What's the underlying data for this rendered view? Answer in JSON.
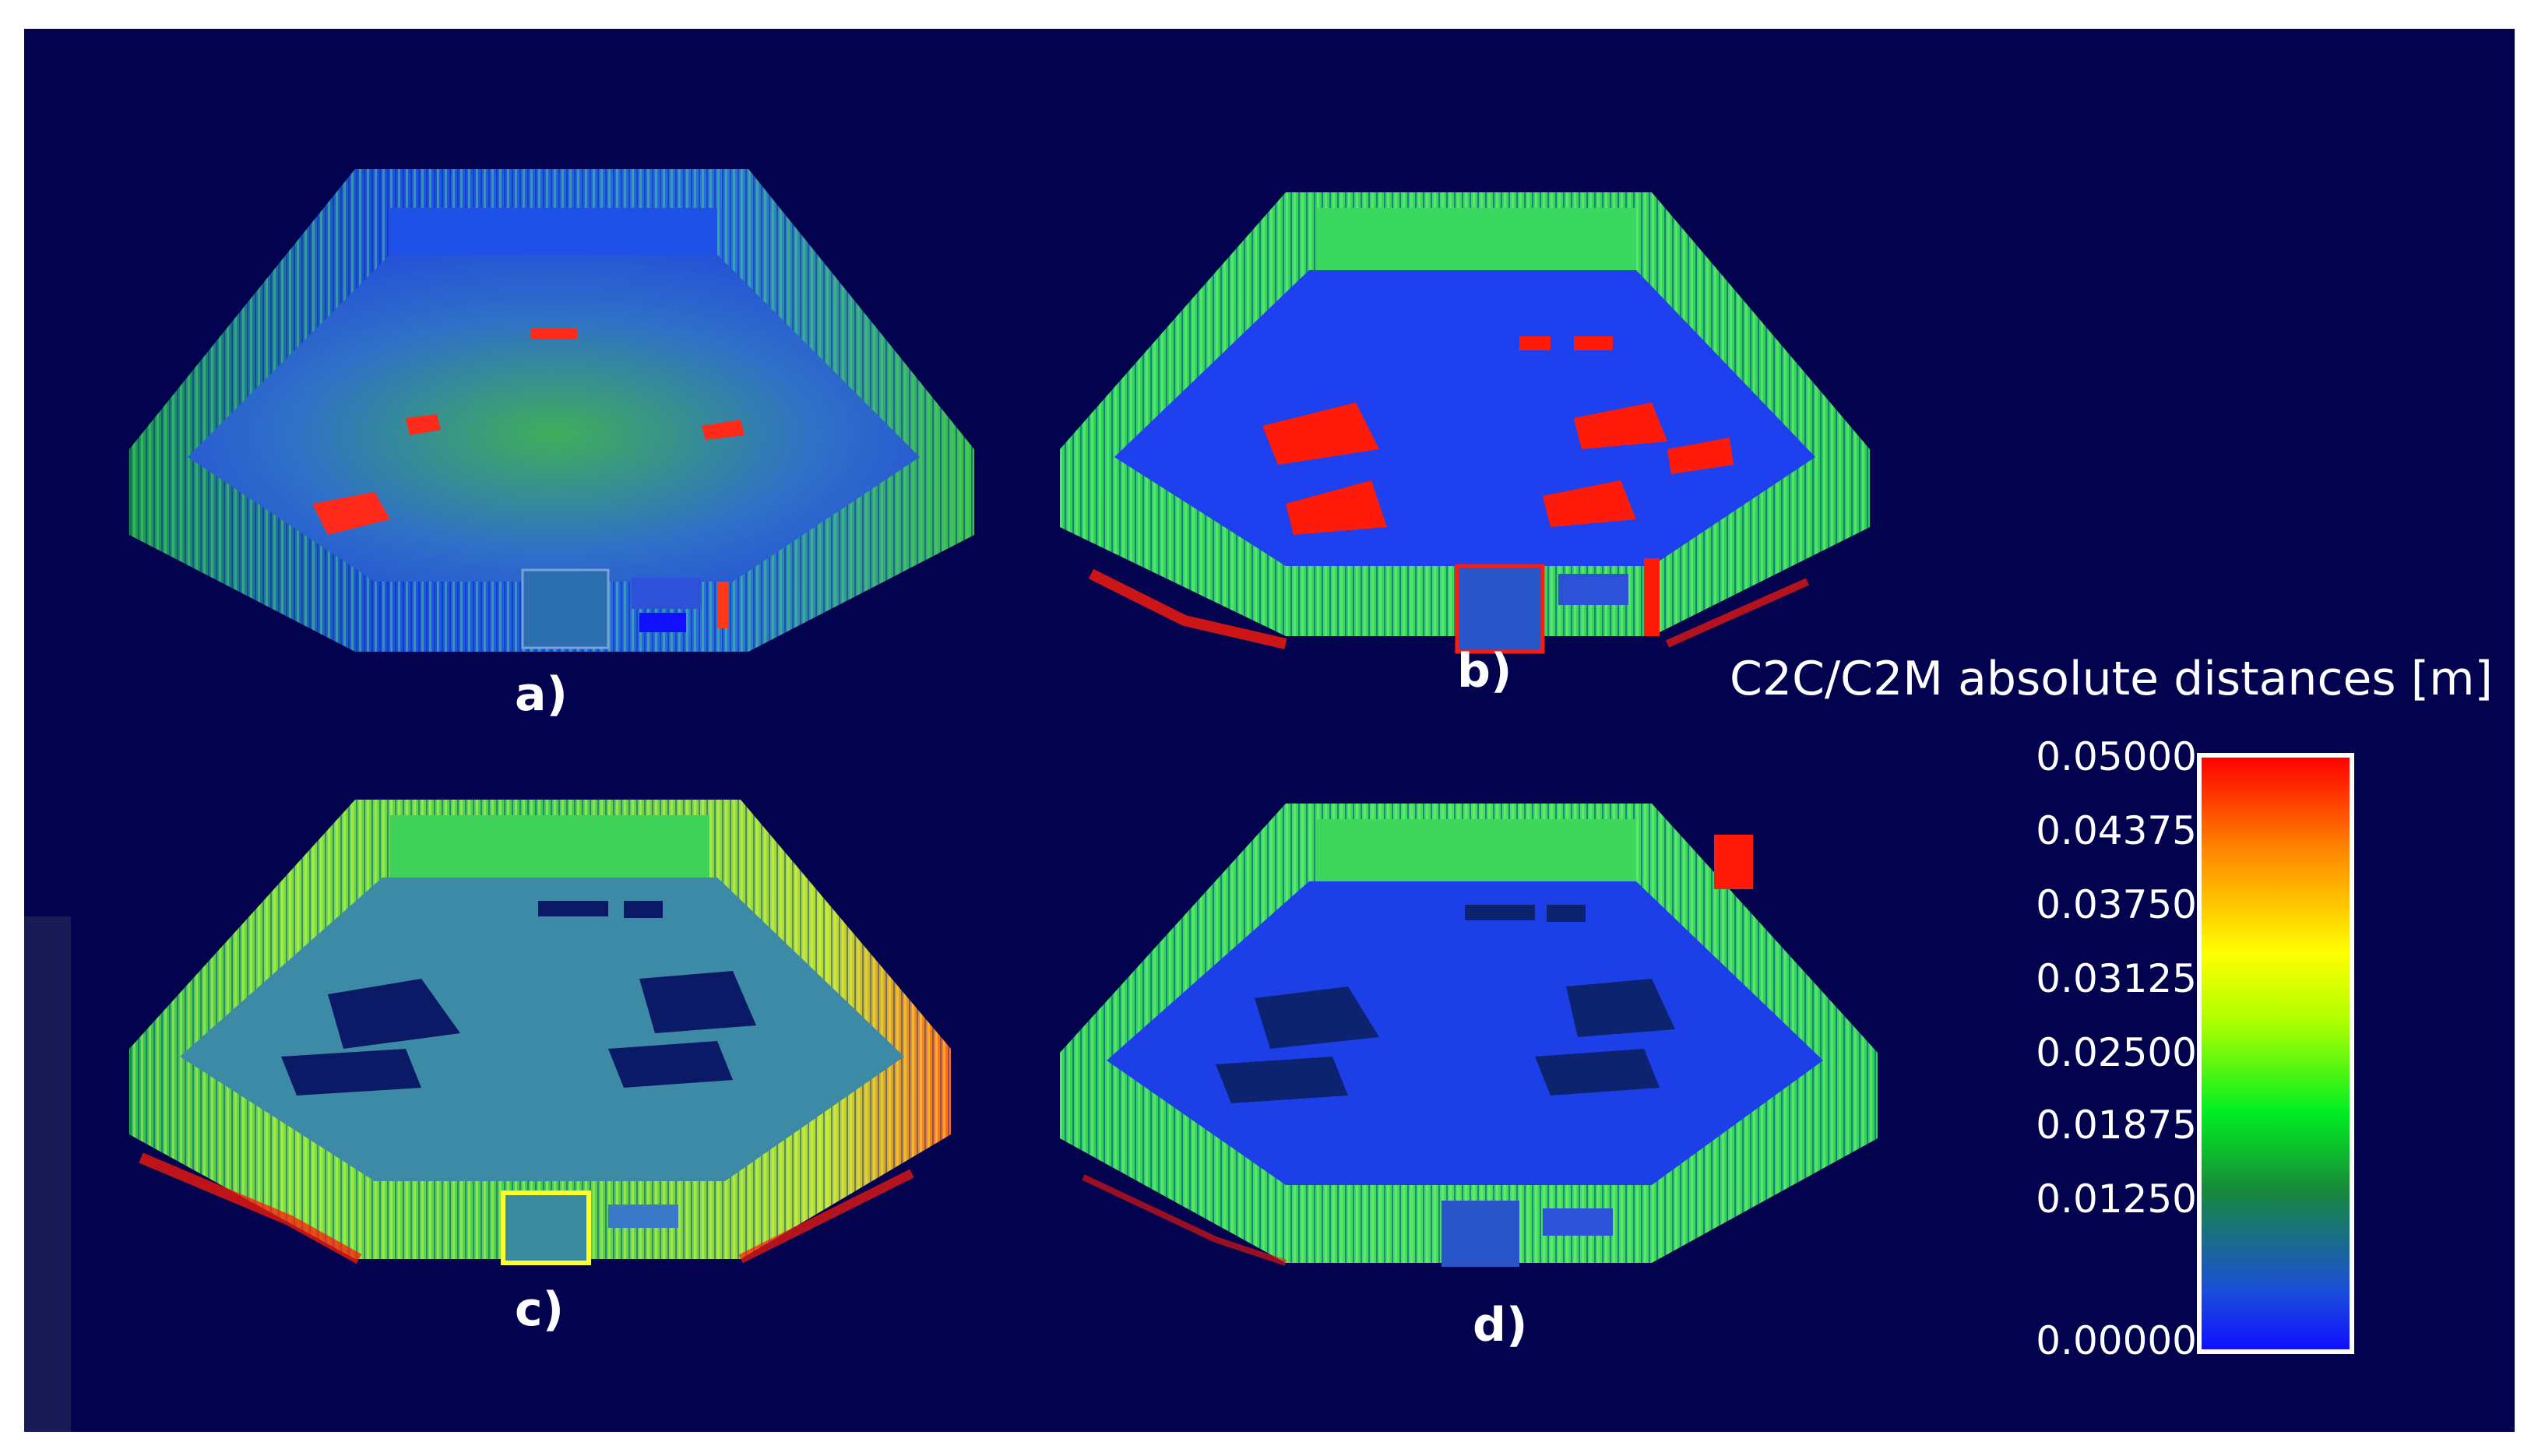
{
  "panels": [
    {
      "label": "a)",
      "scheme": "a"
    },
    {
      "label": "b)",
      "scheme": "b"
    },
    {
      "label": "c)",
      "scheme": "c"
    },
    {
      "label": "d)",
      "scheme": "d"
    }
  ],
  "legend": {
    "title": "C2C/C2M absolute distances [m]",
    "ticks": [
      "0.05000",
      "0.04375",
      "0.03750",
      "0.03125",
      "0.02500",
      "0.01875",
      "0.01250",
      "0.00000"
    ],
    "colors": {
      "max": "#ff0000",
      "mid_high": "#ffff00",
      "mid": "#00ee22",
      "min": "#1010ff"
    }
  },
  "background": "#02024e"
}
